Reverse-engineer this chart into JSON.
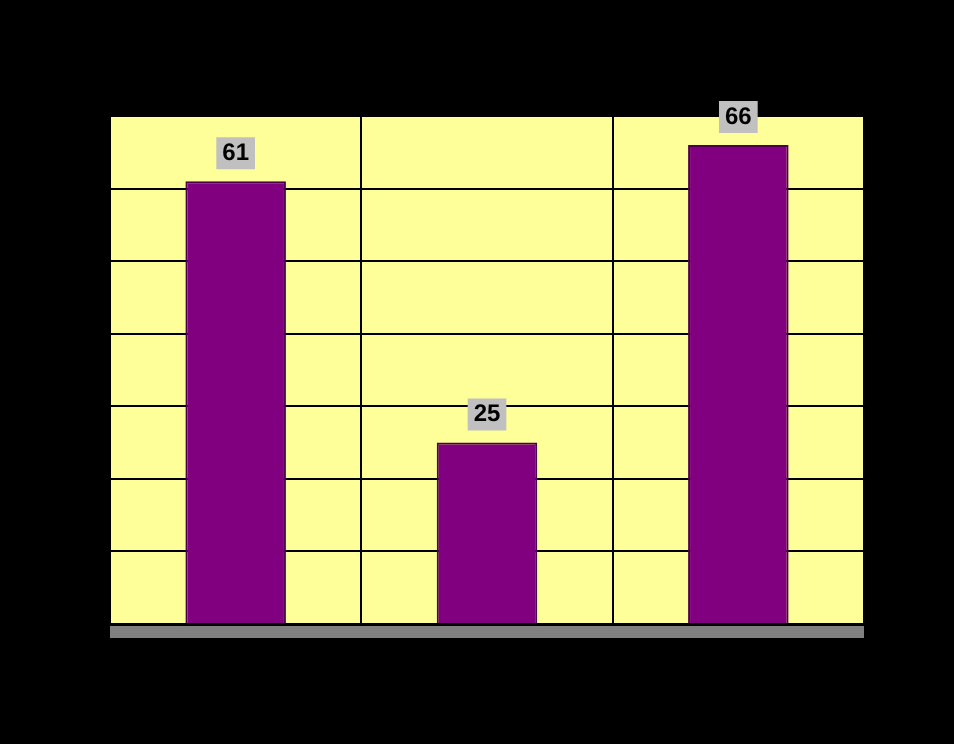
{
  "chart_data": {
    "type": "bar",
    "categories": [
      null,
      null,
      null
    ],
    "values": [
      61,
      25,
      66
    ],
    "color": "#800080",
    "data_labels": true,
    "grid": true,
    "tick_labels": false,
    "legend": false
  }
}
